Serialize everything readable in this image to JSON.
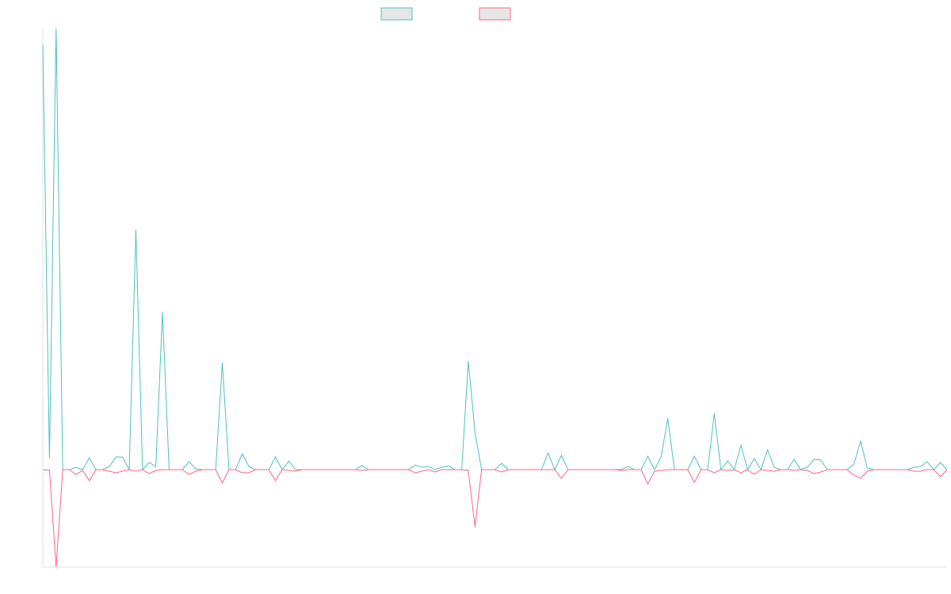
{
  "chart_data": {
    "type": "line",
    "categories": [
      null,
      null,
      null,
      null,
      null,
      null,
      null,
      null,
      null,
      null,
      null,
      null,
      null,
      null,
      null,
      null,
      null,
      null,
      null,
      null,
      null,
      null,
      null,
      null,
      null,
      null,
      null,
      null,
      null,
      null,
      null,
      null,
      null,
      null,
      null,
      null,
      null,
      null,
      null,
      null,
      null,
      null,
      null,
      null,
      null,
      null,
      null,
      null,
      null,
      null,
      null,
      null,
      null,
      null,
      null,
      null,
      null,
      null,
      null,
      null,
      null,
      null,
      null,
      null,
      null,
      null,
      null,
      null,
      null,
      null,
      null,
      null,
      null,
      null,
      null,
      null,
      null,
      null,
      null,
      null,
      null,
      null,
      null,
      null,
      null,
      null,
      null,
      null,
      null,
      null,
      null,
      null,
      null,
      null,
      null,
      null,
      null,
      null,
      null,
      null,
      null,
      null,
      null,
      null,
      null,
      null,
      null,
      null,
      null,
      null,
      null,
      null,
      null,
      null,
      null,
      null,
      null,
      null,
      null,
      null,
      null,
      null,
      null,
      null,
      null,
      null,
      null,
      null,
      null,
      null,
      null,
      null,
      null,
      null,
      null,
      null,
      null
    ],
    "series": [
      {
        "color": "#4bc0c0",
        "values": [
          536,
          14,
          557,
          0,
          0,
          3,
          0,
          15,
          0,
          0,
          4,
          16,
          16,
          0,
          303,
          0,
          9,
          4,
          199,
          0,
          0,
          0,
          10,
          1,
          0,
          0,
          0,
          135,
          0,
          0,
          20,
          4,
          0,
          0,
          0,
          16,
          0,
          11,
          0,
          0,
          0,
          0,
          0,
          0,
          0,
          0,
          0,
          0,
          5,
          0,
          0,
          0,
          0,
          0,
          0,
          0,
          6,
          3,
          4,
          0,
          3,
          5,
          0,
          0,
          137,
          47,
          0,
          0,
          0,
          8,
          0,
          0,
          0,
          0,
          0,
          0,
          21,
          0,
          18,
          0,
          0,
          0,
          0,
          0,
          0,
          0,
          0,
          0,
          4,
          0,
          0,
          17,
          0,
          16,
          65,
          0,
          0,
          0,
          17,
          0,
          0,
          71,
          0,
          11,
          0,
          31,
          0,
          14,
          0,
          25,
          3,
          0,
          0,
          13,
          0,
          3,
          13,
          12,
          0,
          0,
          0,
          0,
          7,
          36,
          2,
          0,
          0,
          0,
          0,
          0,
          0,
          3,
          4,
          10,
          0,
          9,
          0
        ]
      },
      {
        "color": "#ff6384",
        "values": [
          0,
          -1,
          -123,
          0,
          0,
          -6,
          -1,
          -14,
          0,
          0,
          -2,
          -4,
          -2,
          0,
          -2,
          0,
          -5,
          -1,
          0,
          0,
          0,
          0,
          -6,
          -2,
          0,
          0,
          0,
          -17,
          0,
          0,
          -4,
          -4,
          0,
          0,
          0,
          -14,
          0,
          -1,
          -2,
          0,
          0,
          0,
          0,
          0,
          0,
          0,
          0,
          0,
          -1,
          0,
          0,
          0,
          0,
          0,
          0,
          0,
          -4,
          -2,
          0,
          -3,
          0,
          0,
          0,
          0,
          -1,
          -72,
          0,
          0,
          0,
          -3,
          0,
          0,
          0,
          0,
          0,
          0,
          0,
          0,
          -11,
          0,
          0,
          0,
          0,
          0,
          0,
          0,
          0,
          -1,
          0,
          0,
          0,
          -18,
          -2,
          -1,
          0,
          0,
          0,
          0,
          -16,
          0,
          0,
          -4,
          0,
          -1,
          0,
          -4,
          0,
          -6,
          0,
          -1,
          -2,
          0,
          0,
          -1,
          0,
          -1,
          -5,
          -3,
          0,
          0,
          0,
          0,
          -7,
          -11,
          -2,
          0,
          0,
          0,
          0,
          0,
          0,
          -2,
          -2,
          0,
          0,
          -9,
          0
        ]
      }
    ],
    "ylim": [
      -123,
      557
    ]
  }
}
